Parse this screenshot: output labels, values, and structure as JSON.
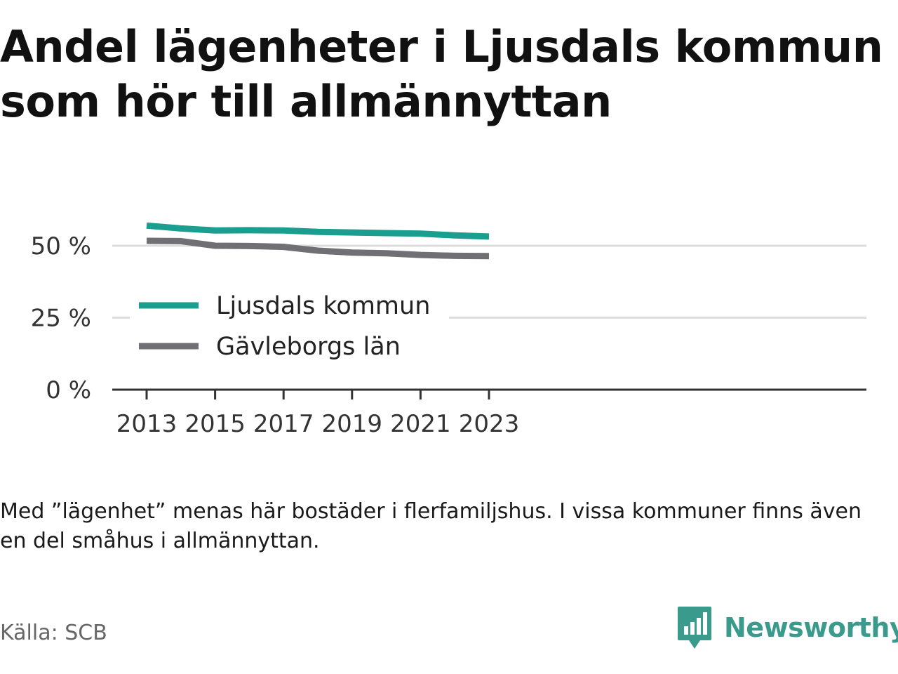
{
  "title": "Andel lägenheter i Ljusdals kommun som hör till allmännyttan",
  "note": "Med ”lägenhet” menas här bostäder i flerfamiljshus. I vissa kommuner finns även en del småhus i allmännyttan.",
  "source": "Källa: SCB",
  "brand": {
    "name": "Newsworthy",
    "logo_icon": "bar-chart-speech-bubble-icon",
    "color": "#3a9b8d"
  },
  "chart_data": {
    "type": "line",
    "x": [
      2013,
      2014,
      2015,
      2016,
      2017,
      2018,
      2019,
      2020,
      2021,
      2022,
      2023
    ],
    "series": [
      {
        "name": "Ljusdals kommun",
        "color": "#1a9e8f",
        "values": [
          57,
          56,
          55.3,
          55.4,
          55.3,
          54.8,
          54.6,
          54.4,
          54.2,
          53.6,
          53.2
        ]
      },
      {
        "name": "Gävleborgs län",
        "color": "#707074",
        "values": [
          51.7,
          51.6,
          50,
          49.9,
          49.6,
          48.3,
          47.6,
          47.4,
          46.8,
          46.5,
          46.4
        ]
      }
    ],
    "xticks": [
      2013,
      2015,
      2017,
      2019,
      2021,
      2023
    ],
    "xtick_labels": [
      "2013",
      "2015",
      "2017",
      "2019",
      "2021",
      "2023"
    ],
    "yticks": [
      0,
      25,
      50
    ],
    "ytick_labels": [
      "0 %",
      "25 %",
      "50 %"
    ],
    "ylim": [
      0,
      60
    ],
    "xlabel": "",
    "ylabel": "",
    "grid": true,
    "legend_position": "center-left"
  }
}
